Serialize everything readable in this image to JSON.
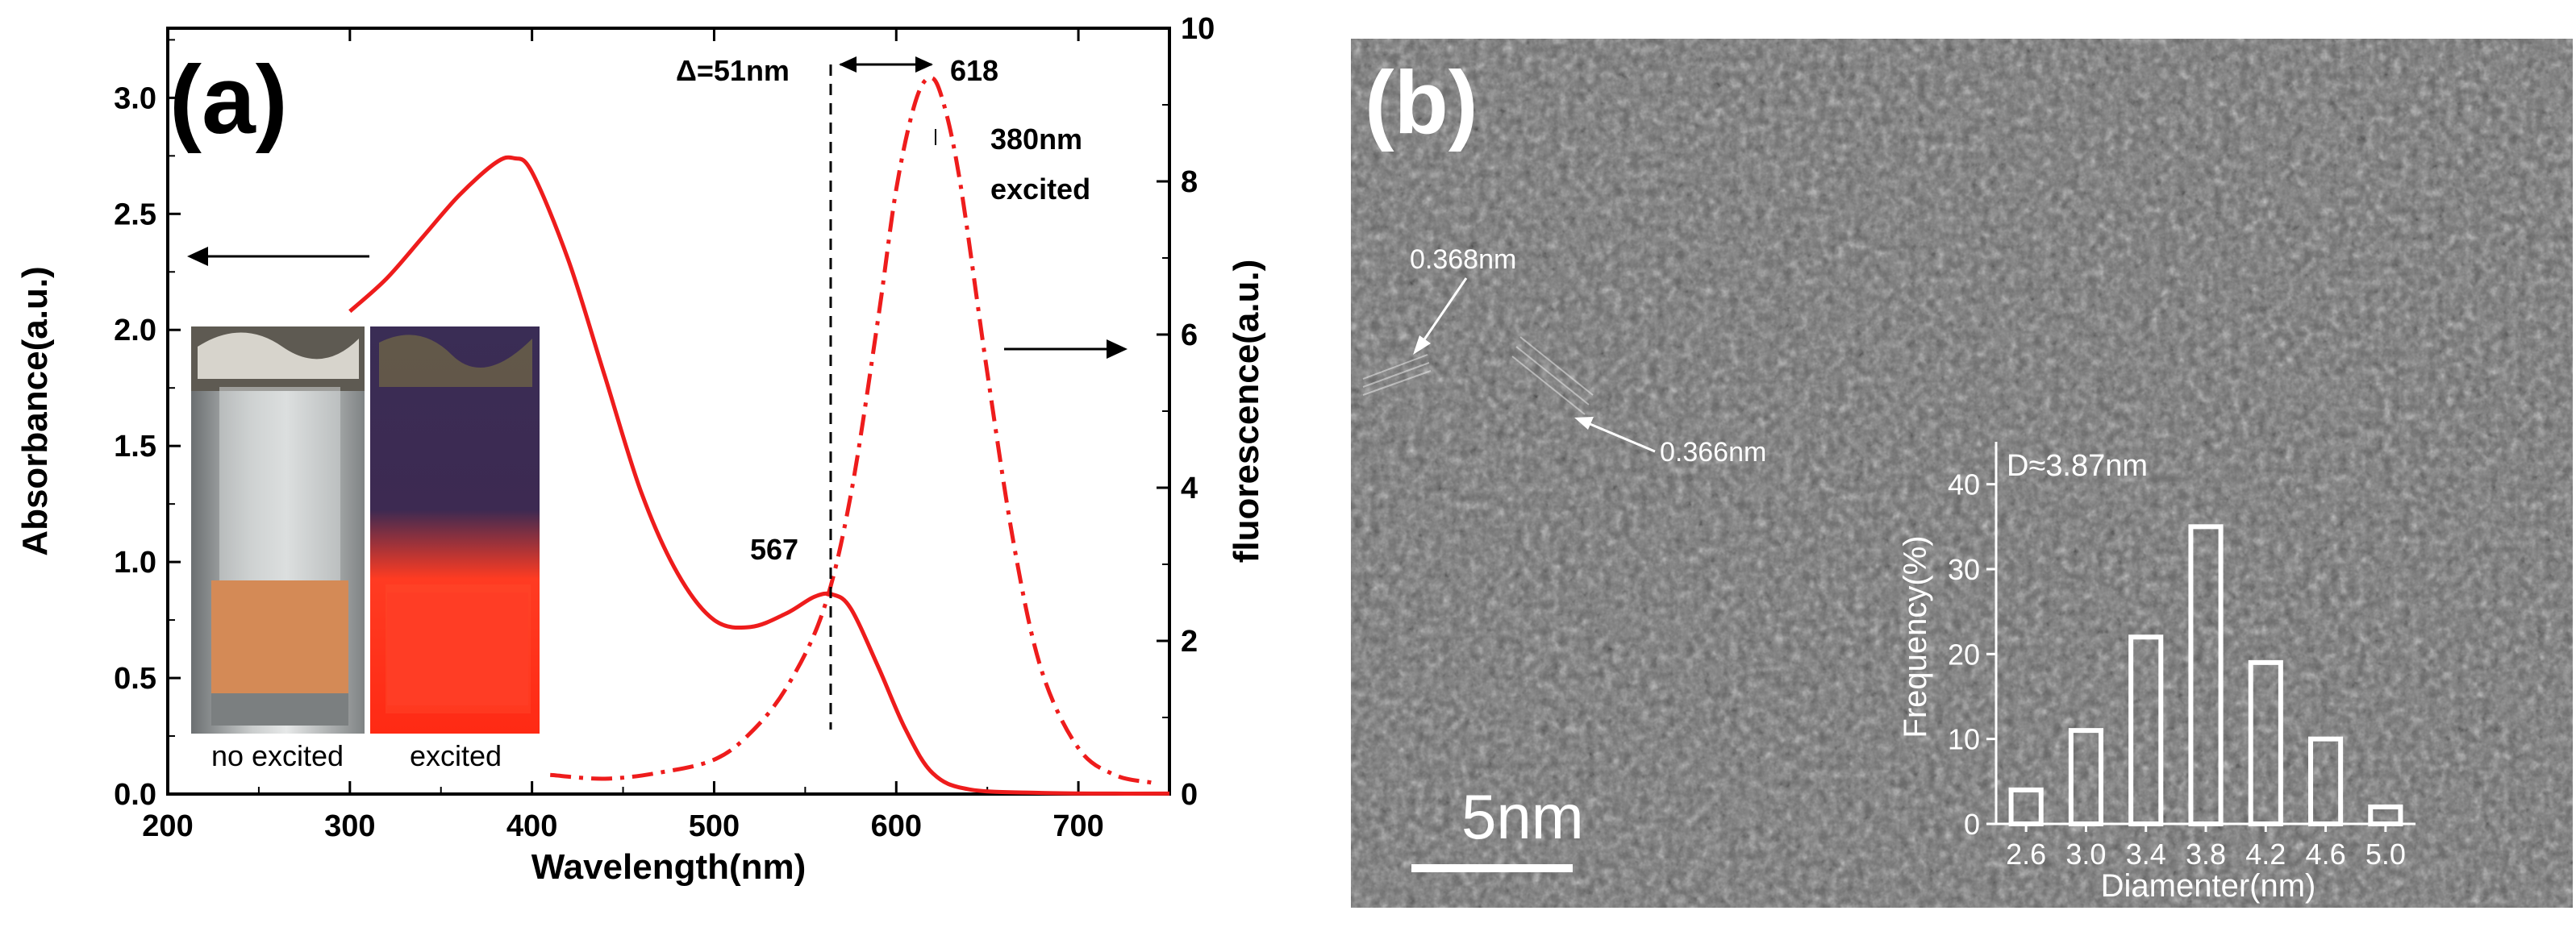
{
  "chart_data": [
    {
      "panel_label": "(a)",
      "type": "line",
      "xlabel": "Wavelength(nm)",
      "ylabel_left": "Absorbance(a.u.)",
      "ylabel_right": "fluorescence(a.u.)",
      "xlim": [
        200,
        750
      ],
      "ylim_left": [
        0,
        3.3
      ],
      "ylim_right": [
        0,
        10
      ],
      "x_ticks": [
        "200",
        "300",
        "400",
        "500",
        "600",
        "700"
      ],
      "y_left_ticks": [
        "0.0",
        "0.5",
        "1.0",
        "1.5",
        "2.0",
        "2.5",
        "3.0"
      ],
      "y_right_ticks": [
        "0",
        "2",
        "4",
        "6",
        "8",
        "10"
      ],
      "series": [
        {
          "name": "absorbance",
          "axis": "left",
          "style": "solid",
          "color": "#ee1c1c",
          "x": [
            300,
            320,
            340,
            360,
            380,
            390,
            400,
            420,
            440,
            460,
            480,
            500,
            520,
            540,
            555,
            565,
            575,
            590,
            605,
            620,
            640,
            680,
            720,
            750
          ],
          "y": [
            2.08,
            2.22,
            2.4,
            2.58,
            2.72,
            2.74,
            2.68,
            2.3,
            1.8,
            1.3,
            0.95,
            0.75,
            0.72,
            0.78,
            0.85,
            0.86,
            0.8,
            0.55,
            0.28,
            0.09,
            0.02,
            0.005,
            0.002,
            0.002
          ]
        },
        {
          "name": "fluorescence",
          "axis": "right",
          "style": "dash-dot",
          "color": "#ee1c1c",
          "x": [
            410,
            440,
            470,
            500,
            520,
            540,
            560,
            575,
            590,
            600,
            610,
            618,
            625,
            635,
            650,
            665,
            680,
            700,
            720,
            740
          ],
          "y": [
            0.25,
            0.2,
            0.28,
            0.45,
            0.8,
            1.4,
            2.4,
            3.9,
            6.2,
            7.9,
            9.0,
            9.35,
            9.1,
            8.0,
            5.5,
            3.2,
            1.6,
            0.6,
            0.25,
            0.15
          ]
        }
      ],
      "annotations": {
        "delta": "Δ=51nm",
        "peak_fluor": "618",
        "excitation": [
          "380nm",
          "excited"
        ],
        "peak_abs": "567",
        "vline_x": 564
      },
      "inset_photos": {
        "left_caption": "no excited",
        "right_caption": "excited"
      }
    },
    {
      "panel_label": "(b)",
      "type": "bar",
      "description_role": "TEM image inset histogram",
      "lattice_labels": [
        "0.368nm",
        "0.366nm"
      ],
      "scale_bar": "5nm",
      "inset_title": "D≈3.87nm",
      "xlabel": "Diamenter(nm)",
      "ylabel": "Frequency(%)",
      "ylim": [
        0,
        45
      ],
      "y_ticks": [
        "0",
        "10",
        "20",
        "30",
        "40"
      ],
      "categories": [
        "2.6",
        "3.0",
        "3.4",
        "3.8",
        "4.2",
        "4.6",
        "5.0"
      ],
      "values": [
        4,
        11,
        22,
        35,
        19,
        10,
        2
      ]
    }
  ]
}
